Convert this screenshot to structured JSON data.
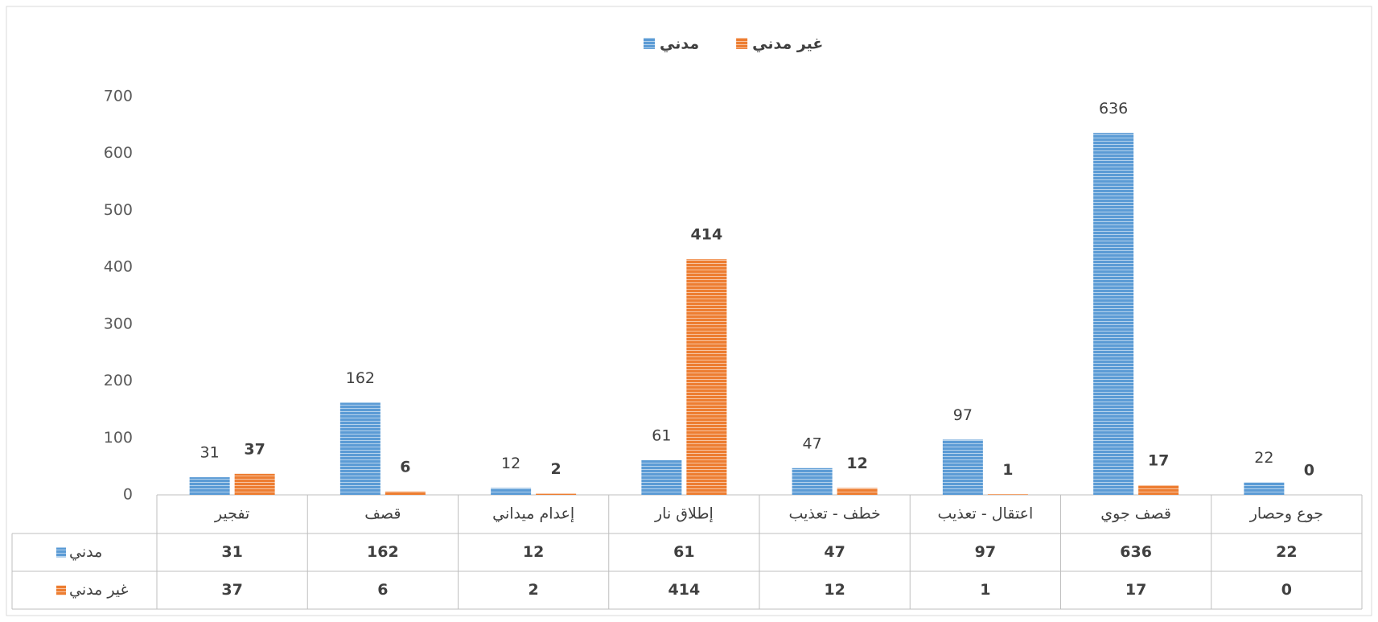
{
  "chart_data": {
    "type": "bar",
    "categories": [
      "تفجير",
      "قصف",
      "إعدام ميداني",
      "إطلاق نار",
      "خطف - تعذيب",
      "اعتقال - تعذيب",
      "قصف جوي",
      "جوع وحصار"
    ],
    "series": [
      {
        "name": "مدني",
        "color": "#5b9bd5",
        "values": [
          31,
          162,
          12,
          61,
          47,
          97,
          636,
          22
        ]
      },
      {
        "name": "غير مدني",
        "color": "#ed7d31",
        "values": [
          37,
          6,
          2,
          414,
          12,
          1,
          17,
          0
        ]
      }
    ],
    "ylim": [
      0,
      700
    ],
    "yticks": [
      0,
      100,
      200,
      300,
      400,
      500,
      600,
      700
    ],
    "legend": "top",
    "data_table": true
  }
}
